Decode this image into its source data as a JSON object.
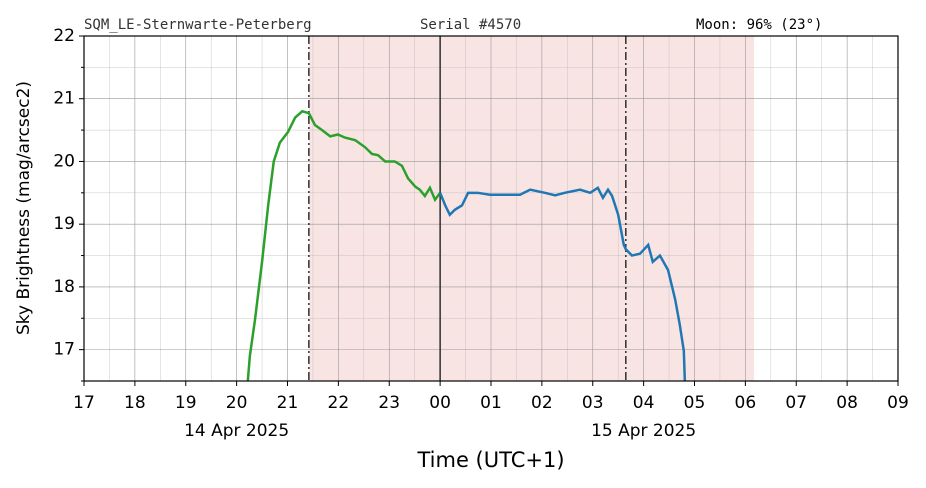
{
  "chart_data": {
    "type": "line",
    "header": {
      "left": "SQM_LE-Sternwarte-Peterberg",
      "center": "Serial #4570",
      "right": "Moon: 96% (23°)"
    },
    "ylabel": "Sky Brightness (mag/arcsec2)",
    "xlabel": "Time (UTC+1)",
    "xlim": [
      17,
      33
    ],
    "ylim": [
      16.5,
      22
    ],
    "xticks": [
      17,
      18,
      19,
      20,
      21,
      22,
      23,
      {
        "value": 24,
        "label": "00"
      },
      {
        "value": 25,
        "label": "01"
      },
      {
        "value": 26,
        "label": "02"
      },
      {
        "value": 27,
        "label": "03"
      },
      {
        "value": 28,
        "label": "04"
      },
      {
        "value": 29,
        "label": "05"
      },
      {
        "value": 30,
        "label": "06"
      },
      {
        "value": 31,
        "label": "07"
      },
      {
        "value": 32,
        "label": "08"
      },
      {
        "value": 33,
        "label": "09"
      }
    ],
    "xminorticks": [
      17.5,
      18.5,
      19.5,
      20.5,
      21.5,
      22.5,
      23.5,
      24.5,
      25.5,
      26.5,
      27.5,
      28.5,
      29.5,
      30.5,
      31.5,
      32.5
    ],
    "yticks": [
      17,
      18,
      19,
      20,
      21,
      22
    ],
    "yminorticks": [
      16.5,
      17.5,
      18.5,
      19.5,
      20.5,
      21.5
    ],
    "grid": true,
    "date_labels": [
      {
        "text": "14 Apr 2025",
        "x": 20
      },
      {
        "text": "15 Apr 2025",
        "x": 28
      }
    ],
    "spans": [
      {
        "x0": 21.42,
        "x1": 30.17,
        "color": "#f9e4e4"
      }
    ],
    "vlines": [
      {
        "x": 21.42,
        "style": "dashdot"
      },
      {
        "x": 24,
        "style": "solid"
      },
      {
        "x": 27.65,
        "style": "dashdot"
      }
    ],
    "series": [
      {
        "color": "#2ca02c",
        "x": [
          20.22,
          20.26,
          20.36,
          20.5,
          20.62,
          20.73,
          20.85,
          21.01,
          21.15,
          21.29,
          21.42,
          21.54,
          21.68,
          21.84,
          21.99,
          22.13,
          22.33,
          22.52,
          22.66,
          22.78,
          22.92,
          23.11,
          23.25,
          23.37,
          23.51,
          23.6,
          23.7,
          23.8,
          23.9,
          24.0
        ],
        "values": [
          16.5,
          16.9,
          17.47,
          18.4,
          19.3,
          20.0,
          20.3,
          20.47,
          20.7,
          20.8,
          20.77,
          20.58,
          20.5,
          20.4,
          20.43,
          20.38,
          20.34,
          20.23,
          20.12,
          20.1,
          20.0,
          20.0,
          19.93,
          19.73,
          19.6,
          19.55,
          19.45,
          19.58,
          19.39,
          19.5
        ]
      },
      {
        "color": "#1f77b4",
        "x": [
          24.0,
          24.1,
          24.19,
          24.29,
          24.43,
          24.55,
          24.74,
          24.98,
          25.57,
          25.77,
          26.06,
          26.26,
          26.45,
          26.75,
          26.95,
          27.1,
          27.2,
          27.3,
          27.38,
          27.5,
          27.61,
          27.65,
          27.77,
          27.93,
          28.09,
          28.18,
          28.32,
          28.48,
          28.62,
          28.71,
          28.79,
          28.81
        ],
        "values": [
          19.5,
          19.3,
          19.15,
          19.23,
          19.3,
          19.5,
          19.5,
          19.47,
          19.47,
          19.55,
          19.5,
          19.46,
          19.5,
          19.55,
          19.5,
          19.58,
          19.42,
          19.55,
          19.45,
          19.15,
          18.67,
          18.6,
          18.5,
          18.53,
          18.67,
          18.4,
          18.5,
          18.27,
          17.8,
          17.4,
          16.98,
          16.5
        ]
      }
    ]
  }
}
